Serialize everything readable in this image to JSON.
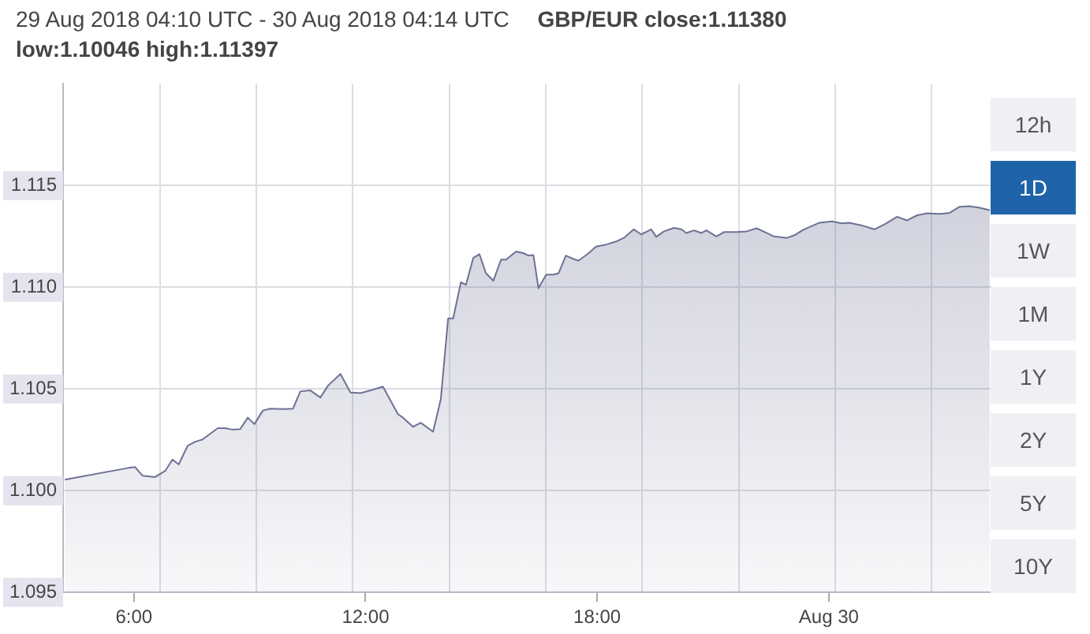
{
  "chart_data": {
    "type": "area",
    "title": "29 Aug 2018 04:10 UTC - 30 Aug 2018 04:14 UTC",
    "subtitle": "GBP/EUR close:1.11380 low:1.10046 high:1.11397",
    "annotations": [
      "12h",
      "1D",
      "1W",
      "1M",
      "1Y",
      "2Y",
      "5Y",
      "10Y"
    ],
    "xlim": [
      4.1667,
      28.2333
    ],
    "xticks": [
      {
        "value": 6,
        "label": "6:00"
      },
      {
        "value": 6.67,
        "label": null
      },
      {
        "value": 9.17,
        "label": null
      },
      {
        "value": 11.67,
        "label": null
      },
      {
        "value": 12,
        "label": "12:00"
      },
      {
        "value": 14.17,
        "label": null
      },
      {
        "value": 16.67,
        "label": null
      },
      {
        "value": 18,
        "label": "18:00"
      },
      {
        "value": 19.17,
        "label": null
      },
      {
        "value": 21.67,
        "label": null
      },
      {
        "value": 24,
        "label": "Aug 30"
      },
      {
        "value": 24.17,
        "label": null
      },
      {
        "value": 26.67,
        "label": null
      }
    ],
    "ylim": [
      1.095,
      1.12
    ],
    "yticks": [
      {
        "value": 1.095,
        "label": "1.095"
      },
      {
        "value": 1.1,
        "label": "1.100"
      },
      {
        "value": 1.105,
        "label": "1.105"
      },
      {
        "value": 1.11,
        "label": "1.110"
      },
      {
        "value": 1.115,
        "label": "1.115"
      }
    ],
    "grid": true,
    "legend": false,
    "marker": "none",
    "series": [
      {
        "color": "#6d7194",
        "x": [
          4.21,
          5.83,
          6.03,
          6.22,
          6.55,
          6.81,
          7.0,
          7.16,
          7.39,
          7.58,
          7.78,
          8.17,
          8.36,
          8.56,
          8.75,
          8.95,
          9.12,
          9.34,
          9.53,
          9.86,
          10.12,
          10.31,
          10.57,
          10.83,
          11.03,
          11.35,
          11.61,
          11.87,
          12.13,
          12.45,
          12.84,
          12.97,
          13.23,
          13.43,
          13.75,
          13.95,
          14.14,
          14.27,
          14.47,
          14.6,
          14.79,
          14.95,
          15.12,
          15.31,
          15.51,
          15.64,
          15.9,
          16.09,
          16.22,
          16.35,
          16.48,
          16.68,
          16.87,
          17.0,
          17.19,
          17.39,
          17.52,
          17.78,
          17.97,
          18.23,
          18.49,
          18.69,
          18.95,
          19.14,
          19.4,
          19.53,
          19.73,
          19.99,
          20.18,
          20.31,
          20.51,
          20.7,
          20.83,
          21.09,
          21.29,
          21.61,
          21.87,
          22.13,
          22.39,
          22.58,
          22.91,
          23.1,
          23.36,
          23.75,
          24.08,
          24.34,
          24.53,
          24.86,
          25.18,
          25.44,
          25.77,
          26.03,
          26.29,
          26.55,
          26.87,
          27.13,
          27.39,
          27.65,
          27.91,
          28.17
        ],
        "values": [
          1.10054,
          1.10111,
          1.10116,
          1.10074,
          1.10067,
          1.10097,
          1.10153,
          1.10129,
          1.1022,
          1.1024,
          1.10252,
          1.10307,
          1.10307,
          1.103,
          1.10302,
          1.10359,
          1.10327,
          1.10394,
          1.10403,
          1.10401,
          1.10403,
          1.10488,
          1.10493,
          1.10458,
          1.10517,
          1.10574,
          1.10483,
          1.1048,
          1.10493,
          1.10512,
          1.10376,
          1.10359,
          1.10314,
          1.10334,
          1.1029,
          1.1045,
          1.10847,
          1.10847,
          1.11025,
          1.11012,
          1.11144,
          1.11163,
          1.11069,
          1.11032,
          1.11136,
          1.11136,
          1.11176,
          1.11168,
          1.11156,
          1.11158,
          1.10995,
          1.11062,
          1.11062,
          1.11069,
          1.11156,
          1.11139,
          1.11131,
          1.11168,
          1.112,
          1.1121,
          1.11225,
          1.11243,
          1.11285,
          1.1126,
          1.11285,
          1.11248,
          1.11275,
          1.11292,
          1.11285,
          1.11267,
          1.1128,
          1.11267,
          1.1128,
          1.1125,
          1.11272,
          1.11272,
          1.11275,
          1.1129,
          1.11267,
          1.1125,
          1.11243,
          1.11255,
          1.11285,
          1.11317,
          1.11324,
          1.11314,
          1.11317,
          1.11304,
          1.11285,
          1.11309,
          1.11347,
          1.11329,
          1.11354,
          1.11364,
          1.11361,
          1.11366,
          1.11396,
          1.11399,
          1.11391,
          1.11379
        ]
      }
    ]
  }
}
